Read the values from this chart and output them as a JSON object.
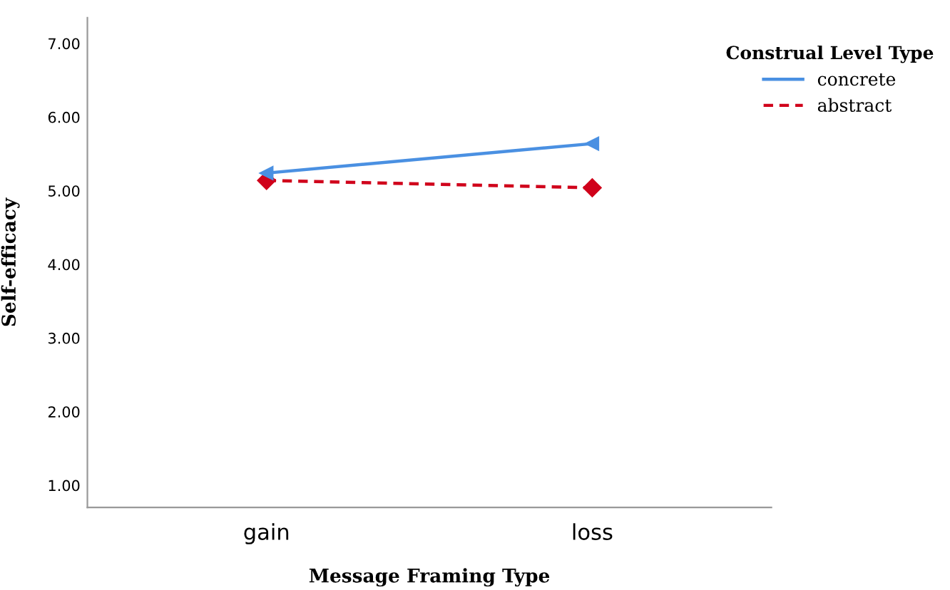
{
  "chart_data": {
    "type": "line",
    "xlabel": "Message Framing Type",
    "ylabel": "Self-efficacy",
    "legend_title": "Construal Level Type",
    "categories": [
      "gain",
      "loss"
    ],
    "series": [
      {
        "name": "concrete",
        "color": "#4a90e2",
        "values": [
          5.24,
          5.64
        ],
        "marker": "triangle",
        "line_style": "solid"
      },
      {
        "name": "abstract",
        "color": "#d0021b",
        "values": [
          5.14,
          5.04
        ],
        "marker": "diamond",
        "line_style": "dashed"
      }
    ],
    "ylim": [
      0.7,
      7.35
    ],
    "yticks": [
      {
        "value": 1,
        "label": "1.00"
      },
      {
        "value": 2,
        "label": "2.00"
      },
      {
        "value": 3,
        "label": "3.00"
      },
      {
        "value": 4,
        "label": "4.00"
      },
      {
        "value": 5,
        "label": "5.00"
      },
      {
        "value": 6,
        "label": "6.00"
      },
      {
        "value": 7,
        "label": "7.00"
      }
    ],
    "grid": false,
    "legend": "top right"
  }
}
